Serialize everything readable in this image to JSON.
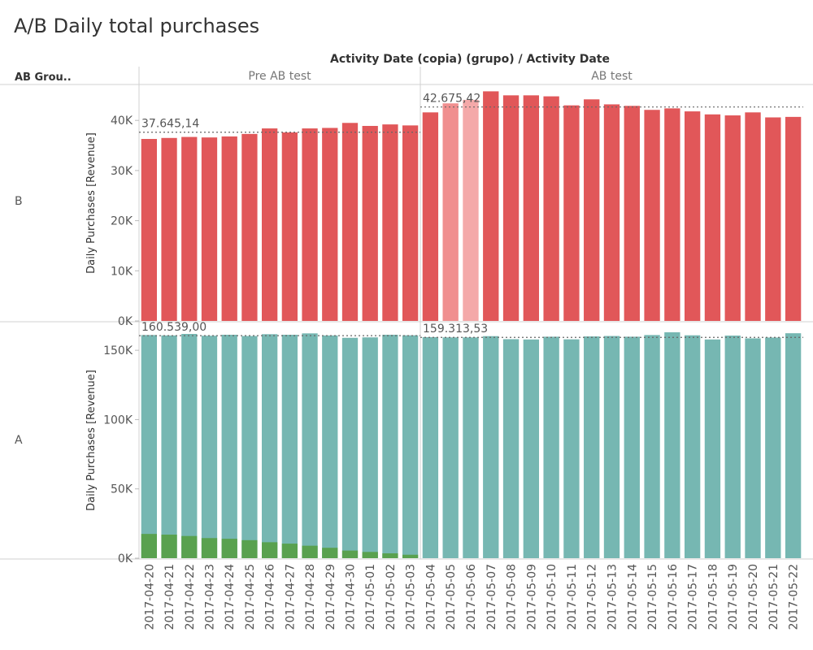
{
  "title": "A/B Daily total purchases",
  "header": {
    "column_dimension": "Activity Date (copia) (grupo)  /  Activity Date",
    "row_header": "AB Grou..",
    "sections": [
      "Pre AB test",
      "AB test"
    ]
  },
  "chart_data": {
    "type": "bar",
    "title": "A/B Daily total purchases",
    "ylabel": "Daily Purchases [Revenue]",
    "dates": [
      "2017-04-20",
      "2017-04-21",
      "2017-04-22",
      "2017-04-23",
      "2017-04-24",
      "2017-04-25",
      "2017-04-26",
      "2017-04-27",
      "2017-04-28",
      "2017-04-29",
      "2017-04-30",
      "2017-05-01",
      "2017-05-02",
      "2017-05-03",
      "2017-05-04",
      "2017-05-05",
      "2017-05-06",
      "2017-05-07",
      "2017-05-08",
      "2017-05-09",
      "2017-05-10",
      "2017-05-11",
      "2017-05-12",
      "2017-05-13",
      "2017-05-14",
      "2017-05-15",
      "2017-05-16",
      "2017-05-17",
      "2017-05-18",
      "2017-05-19",
      "2017-05-20",
      "2017-05-21",
      "2017-05-22"
    ],
    "pre_count": 14,
    "panels": [
      {
        "group": "B",
        "color": "#e15759",
        "ylim": [
          0,
          47000
        ],
        "ticks": [
          0,
          10000,
          20000,
          30000,
          40000
        ],
        "tick_labels": [
          "0K",
          "10K",
          "20K",
          "30K",
          "40K"
        ],
        "values": [
          36300,
          36500,
          36700,
          36600,
          36800,
          37300,
          38400,
          37600,
          38400,
          38500,
          39500,
          38900,
          39200,
          39000,
          41600,
          43400,
          44100,
          45800,
          45000,
          45000,
          44800,
          43000,
          44200,
          43200,
          42900,
          42100,
          42400,
          41800,
          41200,
          41000,
          41600,
          40600,
          40700
        ],
        "highlight": [
          {
            "index": 15,
            "color": "#f08f8f"
          },
          {
            "index": 16,
            "color": "#f4a9a9"
          }
        ],
        "ref_lines": [
          {
            "section": 0,
            "value": 37645.14,
            "label": "37.645,14"
          },
          {
            "section": 1,
            "value": 42675.42,
            "label": "42.675,42"
          }
        ]
      },
      {
        "group": "A",
        "color": "#76b7b2",
        "overlay_color": "#59a14f",
        "ylim": [
          0,
          170000
        ],
        "ticks": [
          0,
          50000,
          100000,
          150000
        ],
        "tick_labels": [
          "0K",
          "50K",
          "100K",
          "150K"
        ],
        "values": [
          161000,
          160700,
          161800,
          160500,
          161200,
          160300,
          161600,
          161200,
          162200,
          160700,
          159000,
          159300,
          161200,
          160800,
          159500,
          159300,
          159300,
          160200,
          158000,
          157800,
          159800,
          157900,
          160000,
          160300,
          159800,
          161000,
          163000,
          160800,
          157800,
          160600,
          158600,
          159200,
          162300
        ],
        "overlay_values": [
          17500,
          17000,
          16000,
          14500,
          14000,
          13000,
          11500,
          10500,
          9000,
          7500,
          5500,
          4500,
          3500,
          2500
        ],
        "ref_lines": [
          {
            "section": 0,
            "value": 160539.0,
            "label": "160.539,00"
          },
          {
            "section": 1,
            "value": 159313.53,
            "label": "159.313,53"
          }
        ]
      }
    ]
  }
}
